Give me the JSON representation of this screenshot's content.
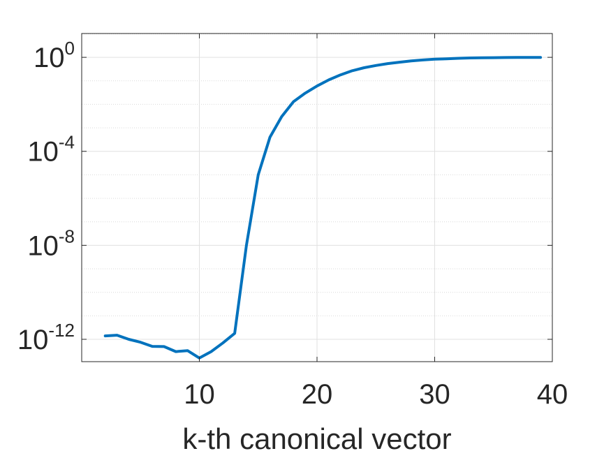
{
  "chart_data": {
    "type": "line",
    "title": "",
    "xlabel": "k-th canonical vector",
    "ylabel": "",
    "xlim": [
      0,
      40
    ],
    "ylim_log10": [
      -13,
      0
    ],
    "yscale": "log",
    "grid": true,
    "minor_grid_y": true,
    "line_color": "#0072BD",
    "x_ticks": [
      10,
      20,
      30,
      40
    ],
    "y_ticks": [
      {
        "base": "10",
        "exp": "0",
        "log10": 0
      },
      {
        "base": "10",
        "exp": "-4",
        "log10": -4
      },
      {
        "base": "10",
        "exp": "-8",
        "log10": -8
      },
      {
        "base": "10",
        "exp": "-12",
        "log10": -12
      }
    ],
    "series": [
      {
        "x": [
          2,
          3,
          4,
          5,
          6,
          7,
          8,
          9,
          10,
          11,
          12,
          13,
          14,
          15,
          16,
          17,
          18,
          19,
          20,
          21,
          22,
          23,
          24,
          25,
          26,
          27,
          28,
          29,
          30,
          31,
          32,
          33,
          34,
          35,
          36,
          37,
          38,
          39
        ],
        "y": [
          "1.4e-12",
          "1.5e-12",
          "1.0e-12",
          "7.5e-13",
          "5.0e-13",
          "4.9e-13",
          "3.0e-13",
          "3.3e-13",
          "1.6e-13",
          "3.0e-13",
          "7.0e-13",
          "1.8e-12",
          "1.0e-8",
          "1.0e-5",
          "4.0e-4",
          "3.0e-3",
          "1.3e-2",
          "3.0e-2",
          "6.0e-2",
          "0.11",
          "0.18",
          "0.27",
          "0.36",
          "0.45",
          "0.54",
          "0.62",
          "0.70",
          "0.77",
          "0.83",
          "0.87",
          "0.91",
          "0.94",
          "0.96",
          "0.97",
          "0.98",
          "0.99",
          "0.99",
          "0.99"
        ]
      }
    ]
  }
}
